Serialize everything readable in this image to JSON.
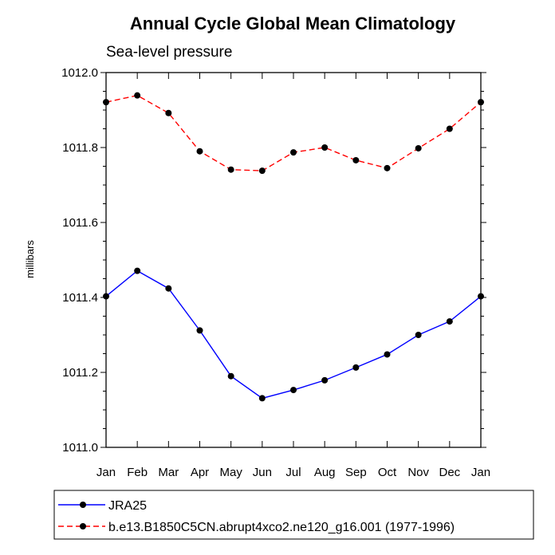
{
  "chart_data": {
    "type": "line",
    "title": "Annual Cycle Global Mean Climatology",
    "subtitle": "Sea-level pressure",
    "xlabel": "",
    "ylabel": "millibars",
    "categories": [
      "Jan",
      "Feb",
      "Mar",
      "Apr",
      "May",
      "Jun",
      "Jul",
      "Aug",
      "Sep",
      "Oct",
      "Nov",
      "Dec",
      "Jan"
    ],
    "ylim": [
      1011.0,
      1012.0
    ],
    "yticks": [
      1011.0,
      1011.2,
      1011.4,
      1011.6,
      1011.8,
      1012.0
    ],
    "ytick_labels": [
      "1011.0",
      "1011.2",
      "1011.4",
      "1011.6",
      "1011.8",
      "1012.0"
    ],
    "grid": false,
    "legend_position": "bottom",
    "series": [
      {
        "name": "JRA25",
        "color": "#0000ff",
        "dash": "solid",
        "values": [
          1011.403,
          1011.471,
          1011.424,
          1011.312,
          1011.19,
          1011.131,
          1011.153,
          1011.179,
          1011.213,
          1011.248,
          1011.3,
          1011.336,
          1011.403
        ]
      },
      {
        "name": "b.e13.B1850C5CN.abrupt4xco2.ne120_g16.001 (1977-1996)",
        "color": "#ff0000",
        "dash": "dashed",
        "values": [
          1011.921,
          1011.939,
          1011.892,
          1011.79,
          1011.741,
          1011.738,
          1011.787,
          1011.8,
          1011.766,
          1011.745,
          1011.798,
          1011.85,
          1011.921
        ]
      }
    ]
  }
}
